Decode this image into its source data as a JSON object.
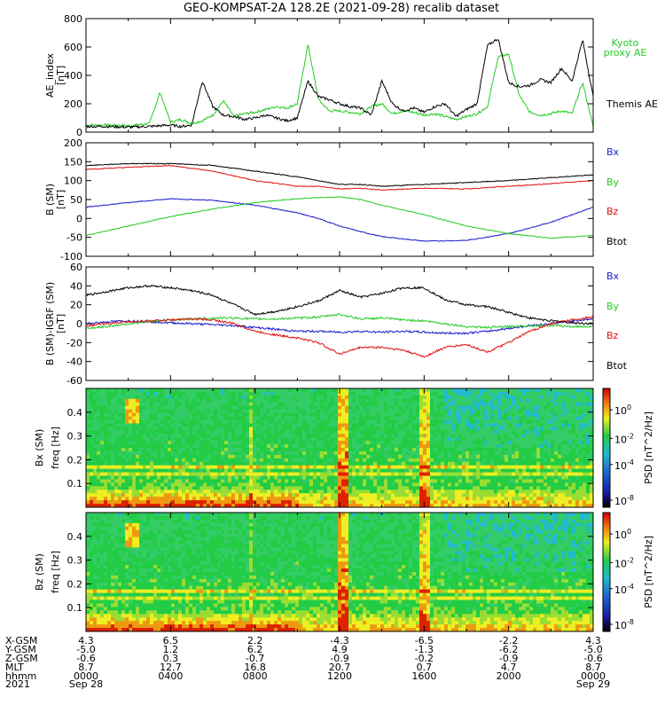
{
  "title": "GEO-KOMPSAT-2A 128.2E (2021-09-28) recalib dataset",
  "colors": {
    "kyoto": "#22cc22",
    "themis": "#000000",
    "bx": "#1a1acc",
    "by": "#22cc22",
    "bz": "#dd1111",
    "btot": "#000000"
  },
  "chart_data": [
    {
      "type": "line",
      "panel": "ae",
      "ylabel": "AE_index",
      "yunit": "[nT]",
      "ylim": [
        0,
        800
      ],
      "yticks": [
        "0",
        "200",
        "400",
        "600",
        "800"
      ],
      "legend": [
        {
          "label": "Kyoto",
          "color_key": "kyoto"
        },
        {
          "label": "proxy AE",
          "color_key": "kyoto"
        },
        {
          "label": "Themis AE",
          "color_key": "themis"
        }
      ],
      "x_hours": [
        0,
        1,
        2,
        3,
        3.5,
        4,
        4.5,
        5,
        5.5,
        6,
        6.5,
        7,
        7.5,
        8,
        8.5,
        9,
        9.5,
        10,
        10.5,
        11,
        11.5,
        12,
        12.5,
        13,
        13.5,
        14,
        14.5,
        15,
        15.5,
        16,
        16.5,
        17,
        17.5,
        18,
        18.5,
        19,
        19.5,
        20,
        20.5,
        21,
        21.5,
        22,
        22.5,
        23,
        23.5,
        24
      ],
      "series": [
        {
          "name": "Kyoto proxy AE",
          "color_key": "kyoto",
          "values": [
            50,
            50,
            45,
            60,
            280,
            70,
            90,
            60,
            80,
            120,
            220,
            110,
            130,
            140,
            160,
            180,
            170,
            200,
            620,
            230,
            150,
            150,
            140,
            130,
            180,
            200,
            130,
            150,
            140,
            120,
            130,
            110,
            90,
            110,
            130,
            180,
            530,
            550,
            260,
            140,
            120,
            130,
            150,
            130,
            350,
            40
          ]
        },
        {
          "name": "Themis AE",
          "color_key": "themis",
          "values": [
            40,
            40,
            35,
            40,
            45,
            50,
            40,
            50,
            360,
            180,
            120,
            110,
            90,
            100,
            120,
            100,
            80,
            100,
            360,
            250,
            230,
            200,
            180,
            170,
            120,
            360,
            200,
            150,
            170,
            140,
            180,
            200,
            110,
            160,
            200,
            610,
            660,
            350,
            320,
            330,
            370,
            350,
            450,
            360,
            650,
            250
          ]
        }
      ]
    },
    {
      "type": "line",
      "panel": "b",
      "ylabel": "B (SM)",
      "yunit": "[nT]",
      "ylim": [
        -100,
        200
      ],
      "yticks": [
        "-100",
        "-50",
        "0",
        "50",
        "100",
        "150",
        "200"
      ],
      "legend": [
        {
          "label": "Bx",
          "color_key": "bx"
        },
        {
          "label": "By",
          "color_key": "by"
        },
        {
          "label": "Bz",
          "color_key": "bz"
        },
        {
          "label": "Btot",
          "color_key": "btot"
        }
      ],
      "x_hours": [
        0,
        2,
        4,
        6,
        8,
        10,
        11,
        12,
        13,
        14,
        16,
        18,
        20,
        22,
        24
      ],
      "series": [
        {
          "name": "Bx",
          "color_key": "bx",
          "values": [
            30,
            42,
            52,
            48,
            35,
            15,
            0,
            -20,
            -35,
            -48,
            -60,
            -58,
            -40,
            -10,
            30
          ]
        },
        {
          "name": "By",
          "color_key": "by",
          "values": [
            -45,
            -20,
            5,
            25,
            42,
            52,
            55,
            57,
            50,
            35,
            10,
            -20,
            -40,
            -52,
            -45
          ]
        },
        {
          "name": "Bz",
          "color_key": "bz",
          "values": [
            130,
            135,
            140,
            125,
            100,
            85,
            85,
            78,
            80,
            75,
            80,
            78,
            85,
            92,
            100
          ]
        },
        {
          "name": "Btot",
          "color_key": "btot",
          "values": [
            140,
            145,
            145,
            140,
            125,
            110,
            100,
            90,
            90,
            85,
            90,
            95,
            100,
            108,
            115
          ]
        }
      ]
    },
    {
      "type": "line",
      "panel": "db",
      "ylabel": "B (SM)-IGRF (SM)",
      "yunit": "[nT]",
      "ylim": [
        -60,
        60
      ],
      "yticks": [
        "-60",
        "-40",
        "-20",
        "0",
        "20",
        "40",
        "60"
      ],
      "legend": [
        {
          "label": "Bx",
          "color_key": "bx"
        },
        {
          "label": "By",
          "color_key": "by"
        },
        {
          "label": "Bz",
          "color_key": "bz"
        },
        {
          "label": "Btot",
          "color_key": "btot"
        }
      ],
      "x_hours": [
        0,
        1,
        2,
        3,
        4,
        5,
        6,
        7,
        8,
        9,
        10,
        11,
        12,
        13,
        14,
        15,
        16,
        17,
        18,
        19,
        20,
        21,
        22,
        23,
        24
      ],
      "series": [
        {
          "name": "Bx",
          "color_key": "bx",
          "values": [
            0,
            2,
            3,
            2,
            1,
            0,
            -1,
            -2,
            -4,
            -6,
            -8,
            -8,
            -9,
            -8,
            -9,
            -8,
            -9,
            -10,
            -10,
            -8,
            -5,
            -2,
            0,
            3,
            5
          ]
        },
        {
          "name": "By",
          "color_key": "by",
          "values": [
            -5,
            -3,
            0,
            2,
            4,
            5,
            6,
            6,
            5,
            5,
            6,
            7,
            10,
            5,
            6,
            4,
            3,
            0,
            -3,
            -4,
            -3,
            -2,
            -2,
            -3,
            -3
          ]
        },
        {
          "name": "Bz",
          "color_key": "bz",
          "values": [
            -2,
            0,
            2,
            3,
            4,
            5,
            4,
            0,
            -8,
            -12,
            -15,
            -20,
            -32,
            -25,
            -25,
            -28,
            -35,
            -25,
            -22,
            -30,
            -20,
            -8,
            0,
            4,
            7
          ]
        },
        {
          "name": "Btot",
          "color_key": "btot",
          "values": [
            30,
            34,
            38,
            40,
            38,
            35,
            30,
            20,
            10,
            13,
            18,
            24,
            35,
            28,
            32,
            38,
            38,
            25,
            20,
            18,
            12,
            6,
            3,
            1,
            0
          ]
        }
      ]
    },
    {
      "type": "heatmap",
      "panel": "spec_bx",
      "ylabel": "Bx (SM)",
      "yunit": "freq [Hz]",
      "ylim": [
        0,
        0.5
      ],
      "yticks": [
        "0.1",
        "0.2",
        "0.3",
        "0.4"
      ],
      "cbar_label": "PSD [nT^2/Hz]",
      "cbar_ticks": [
        "10^-8",
        "10^-4",
        "10^-2",
        "10^0"
      ],
      "cbar_ticks_exp": [
        "-8",
        "-4",
        "-2",
        "0"
      ]
    },
    {
      "type": "heatmap",
      "panel": "spec_bz",
      "ylabel": "Bz (SM)",
      "yunit": "freq [Hz]",
      "ylim": [
        0,
        0.5
      ],
      "yticks": [
        "0.1",
        "0.2",
        "0.3",
        "0.4"
      ],
      "cbar_label": "PSD [nT^2/Hz]",
      "cbar_ticks": [
        "10^-8",
        "10^-4",
        "10^-2",
        "10^0"
      ],
      "cbar_ticks_exp": [
        "-8",
        "-4",
        "-2",
        "0"
      ]
    }
  ],
  "axis_table": {
    "rows": [
      {
        "label": "X-GSM",
        "values": [
          "4.3",
          "6.5",
          "2.2",
          "-4.3",
          "-6.5",
          "-2.2",
          "4.3"
        ]
      },
      {
        "label": "Y-GSM",
        "values": [
          "-5.0",
          "1.2",
          "6.2",
          "4.9",
          "-1.3",
          "-6.2",
          "-5.0"
        ]
      },
      {
        "label": "Z-GSM",
        "values": [
          "-0.6",
          "0.3",
          "-0.7",
          "-0.9",
          "-0.2",
          "-0.9",
          "-0.6"
        ]
      },
      {
        "label": "MLT",
        "values": [
          "8.7",
          "12.7",
          "16.8",
          "20.7",
          "0.7",
          "4.7",
          "8.7"
        ]
      },
      {
        "label": "hhmm",
        "values": [
          "0000",
          "0400",
          "0800",
          "1200",
          "1600",
          "2000",
          "0000"
        ]
      },
      {
        "label": "2021",
        "values": [
          "Sep 28",
          "",
          "",
          "",
          "",
          "",
          "Sep 29"
        ]
      }
    ],
    "tick_hours": [
      0,
      4,
      8,
      12,
      16,
      20,
      24
    ]
  }
}
